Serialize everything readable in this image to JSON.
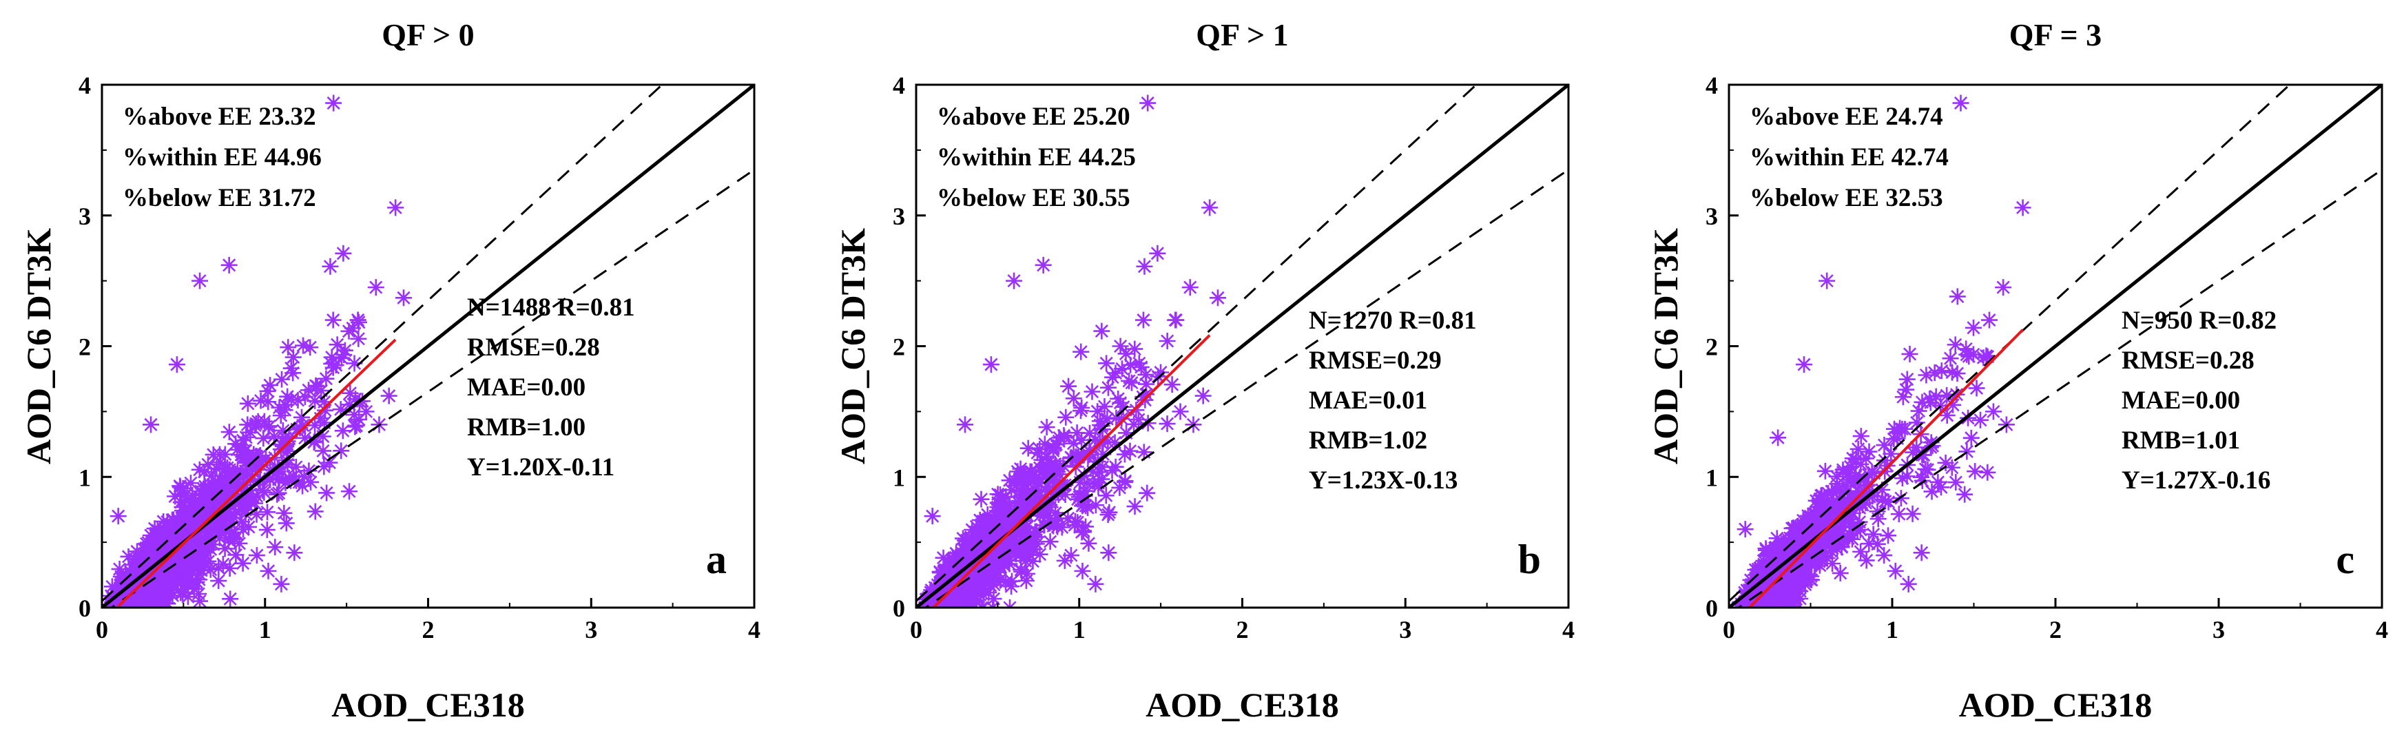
{
  "figure": {
    "point_color": "#9B30FF",
    "fit_color": "#E8181C",
    "line_color": "#000000"
  },
  "chart_data": [
    {
      "type": "scatter",
      "title": "QF > 0",
      "xlabel": "AOD_CE318",
      "ylabel": "AOD_C6 DT3K",
      "xlim": [
        0,
        4
      ],
      "ylim": [
        0,
        4
      ],
      "xticks": [
        "0",
        "1",
        "2",
        "3",
        "4"
      ],
      "yticks": [
        "0",
        "1",
        "2",
        "3",
        "4"
      ],
      "ee_stats": [
        "%above EE 23.32",
        "%within EE 44.96",
        "%below EE 31.72"
      ],
      "stats": [
        "N=1488  R=0.81",
        "RMSE=0.28",
        "MAE=0.00",
        "RMB=1.00",
        "Y=1.20X-0.11"
      ],
      "panel_label": "a",
      "fit": {
        "slope": 1.2,
        "intercept": -0.11,
        "x_range": [
          0.1,
          1.8
        ]
      },
      "ee_envelope": {
        "abs": 0.05,
        "rel": 0.15
      },
      "n_points": 1488,
      "outliers": [
        [
          1.42,
          3.86
        ],
        [
          1.8,
          3.06
        ],
        [
          1.48,
          2.71
        ],
        [
          1.68,
          2.45
        ],
        [
          0.78,
          2.62
        ],
        [
          0.6,
          2.5
        ],
        [
          1.4,
          2.61
        ],
        [
          1.85,
          2.37
        ],
        [
          1.7,
          1.4
        ],
        [
          1.62,
          1.5
        ],
        [
          1.76,
          1.62
        ],
        [
          0.46,
          1.86
        ],
        [
          0.1,
          0.7
        ],
        [
          0.3,
          1.4
        ],
        [
          1.02,
          0.28
        ],
        [
          1.1,
          0.18
        ],
        [
          1.28,
          0.96
        ],
        [
          0.95,
          0.4
        ],
        [
          1.18,
          0.42
        ],
        [
          0.6,
          0.05
        ]
      ]
    },
    {
      "type": "scatter",
      "title": "QF > 1",
      "xlabel": "AOD_CE318",
      "ylabel": "AOD_C6 DT3K",
      "xlim": [
        0,
        4
      ],
      "ylim": [
        0,
        4
      ],
      "xticks": [
        "0",
        "1",
        "2",
        "3",
        "4"
      ],
      "yticks": [
        "0",
        "1",
        "2",
        "3",
        "4"
      ],
      "ee_stats": [
        "%above EE 25.20",
        "%within EE 44.25",
        "%below EE 30.55"
      ],
      "stats": [
        "N=1270  R=0.81",
        "RMSE=0.29",
        "MAE=0.01",
        "RMB=1.02",
        "Y=1.23X-0.13"
      ],
      "panel_label": "b",
      "fit": {
        "slope": 1.23,
        "intercept": -0.13,
        "x_range": [
          0.1,
          1.8
        ]
      },
      "ee_envelope": {
        "abs": 0.05,
        "rel": 0.15
      },
      "n_points": 1270,
      "outliers": [
        [
          1.42,
          3.86
        ],
        [
          1.8,
          3.06
        ],
        [
          1.48,
          2.71
        ],
        [
          1.68,
          2.45
        ],
        [
          0.78,
          2.62
        ],
        [
          0.6,
          2.5
        ],
        [
          1.4,
          2.61
        ],
        [
          1.85,
          2.37
        ],
        [
          1.7,
          1.4
        ],
        [
          1.62,
          1.5
        ],
        [
          1.76,
          1.62
        ],
        [
          0.46,
          1.86
        ],
        [
          0.1,
          0.7
        ],
        [
          0.3,
          1.4
        ],
        [
          1.02,
          0.28
        ],
        [
          1.1,
          0.18
        ],
        [
          1.28,
          0.96
        ],
        [
          0.95,
          0.4
        ],
        [
          1.18,
          0.42
        ]
      ]
    },
    {
      "type": "scatter",
      "title": "QF = 3",
      "xlabel": "AOD_CE318",
      "ylabel": "AOD_C6 DT3K",
      "xlim": [
        0,
        4
      ],
      "ylim": [
        0,
        4
      ],
      "xticks": [
        "0",
        "1",
        "2",
        "3",
        "4"
      ],
      "yticks": [
        "0",
        "1",
        "2",
        "3",
        "4"
      ],
      "ee_stats": [
        "%above EE 24.74",
        "%within EE 42.74",
        "%below EE 32.53"
      ],
      "stats": [
        "N=950  R=0.82",
        "RMSE=0.28",
        "MAE=0.00",
        "RMB=1.01",
        "Y=1.27X-0.16"
      ],
      "panel_label": "c",
      "fit": {
        "slope": 1.27,
        "intercept": -0.16,
        "x_range": [
          0.1,
          1.8
        ]
      },
      "ee_envelope": {
        "abs": 0.05,
        "rel": 0.15
      },
      "n_points": 950,
      "outliers": [
        [
          1.42,
          3.86
        ],
        [
          1.8,
          3.06
        ],
        [
          1.68,
          2.45
        ],
        [
          0.6,
          2.5
        ],
        [
          1.4,
          2.38
        ],
        [
          1.7,
          1.4
        ],
        [
          1.62,
          1.5
        ],
        [
          0.46,
          1.86
        ],
        [
          0.1,
          0.6
        ],
        [
          0.3,
          1.3
        ],
        [
          1.02,
          0.28
        ],
        [
          1.1,
          0.18
        ],
        [
          1.28,
          0.96
        ],
        [
          0.95,
          0.4
        ],
        [
          1.18,
          0.42
        ]
      ]
    }
  ]
}
